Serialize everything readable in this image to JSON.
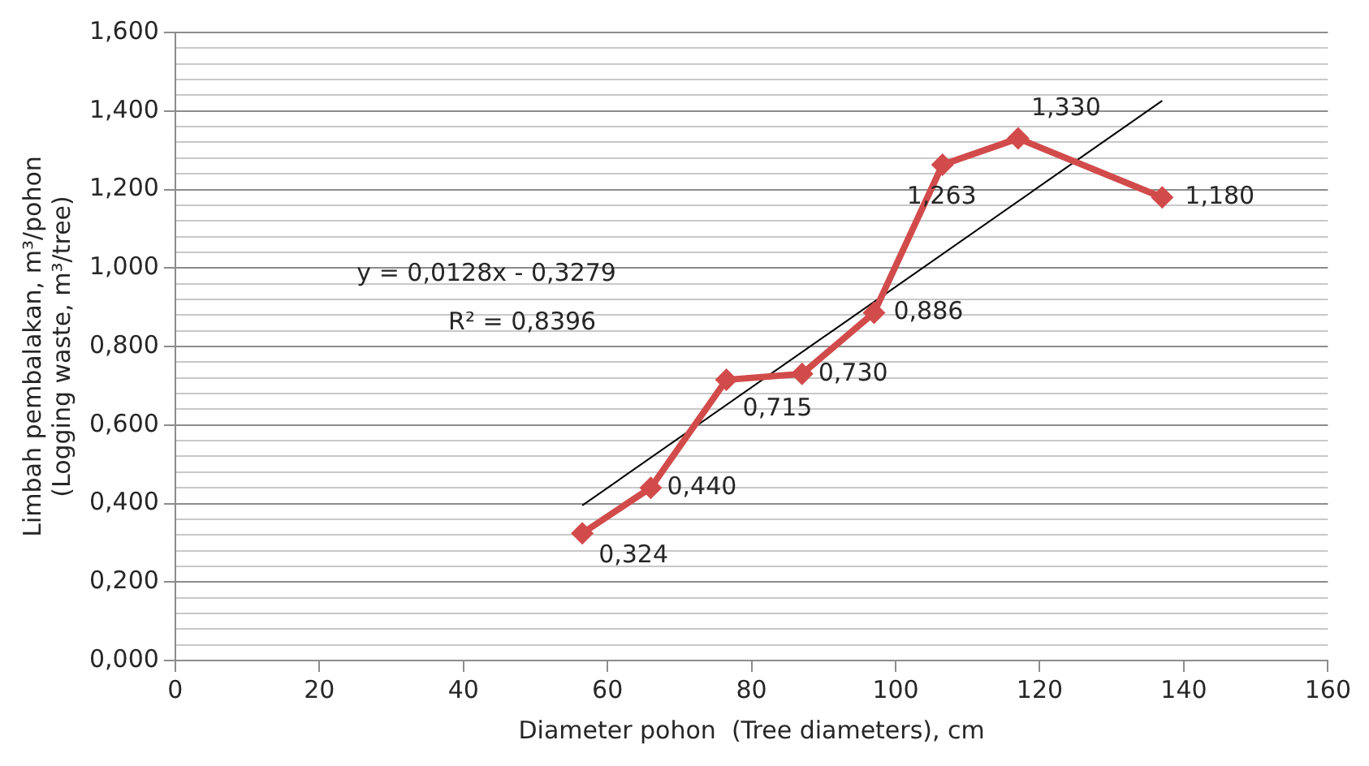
{
  "chart_data": {
    "type": "line",
    "xlabel": "Diameter pohon  (Tree diameters), cm",
    "ylabel": "Limbah pembalakan, m³/pohon\n(Logging waste, m³/tree)",
    "xlim": [
      0,
      160
    ],
    "xticks": [
      0,
      20,
      40,
      60,
      80,
      100,
      120,
      140,
      160
    ],
    "ylim": [
      0,
      1.6
    ],
    "yticks": [
      {
        "value": 0,
        "label": "0,000"
      },
      {
        "value": 0.04,
        "label": null
      },
      {
        "value": 0.08,
        "label": null
      },
      {
        "value": 0.12,
        "label": null
      },
      {
        "value": 0.16,
        "label": null
      },
      {
        "value": 0.2,
        "label": "0,200"
      },
      {
        "value": 0.24,
        "label": null
      },
      {
        "value": 0.28,
        "label": null
      },
      {
        "value": 0.32,
        "label": null
      },
      {
        "value": 0.36,
        "label": null
      },
      {
        "value": 0.4,
        "label": "0,400"
      },
      {
        "value": 0.44,
        "label": null
      },
      {
        "value": 0.48,
        "label": null
      },
      {
        "value": 0.52,
        "label": null
      },
      {
        "value": 0.56,
        "label": null
      },
      {
        "value": 0.6,
        "label": "0,600"
      },
      {
        "value": 0.64,
        "label": null
      },
      {
        "value": 0.68,
        "label": null
      },
      {
        "value": 0.72,
        "label": null
      },
      {
        "value": 0.76,
        "label": null
      },
      {
        "value": 0.8,
        "label": "0,800"
      },
      {
        "value": 0.84,
        "label": null
      },
      {
        "value": 0.88,
        "label": null
      },
      {
        "value": 0.92,
        "label": null
      },
      {
        "value": 0.96,
        "label": null
      },
      {
        "value": 1.0,
        "label": "1,000"
      },
      {
        "value": 1.04,
        "label": null
      },
      {
        "value": 1.08,
        "label": null
      },
      {
        "value": 1.12,
        "label": null
      },
      {
        "value": 1.16,
        "label": null
      },
      {
        "value": 1.2,
        "label": "1,200"
      },
      {
        "value": 1.24,
        "label": null
      },
      {
        "value": 1.28,
        "label": null
      },
      {
        "value": 1.32,
        "label": null
      },
      {
        "value": 1.36,
        "label": null
      },
      {
        "value": 1.4,
        "label": "1,400"
      },
      {
        "value": 1.44,
        "label": null
      },
      {
        "value": 1.48,
        "label": null
      },
      {
        "value": 1.52,
        "label": null
      },
      {
        "value": 1.56,
        "label": null
      },
      {
        "value": 1.6,
        "label": "1,600"
      }
    ],
    "grid": "y",
    "legend": false,
    "series": [
      {
        "color": "#d24b4b",
        "marker": "diamond",
        "x": [
          56.5,
          66,
          76.5,
          87,
          97,
          106.5,
          117,
          137
        ],
        "values": [
          0.324,
          0.44,
          0.715,
          0.73,
          0.886,
          1.263,
          1.33,
          1.18
        ],
        "value_labels": [
          "0,324",
          "0,440",
          "0,715",
          "0,730",
          "0,886",
          "1,263",
          "1,330",
          "1,180"
        ]
      },
      {
        "color": "#000000",
        "marker": "none",
        "x": [
          56.5,
          137
        ],
        "values": [
          0.395,
          1.426
        ]
      }
    ],
    "annotations": [
      "y = 0,0128x - 0,3279",
      "R² = 0,8396"
    ]
  }
}
